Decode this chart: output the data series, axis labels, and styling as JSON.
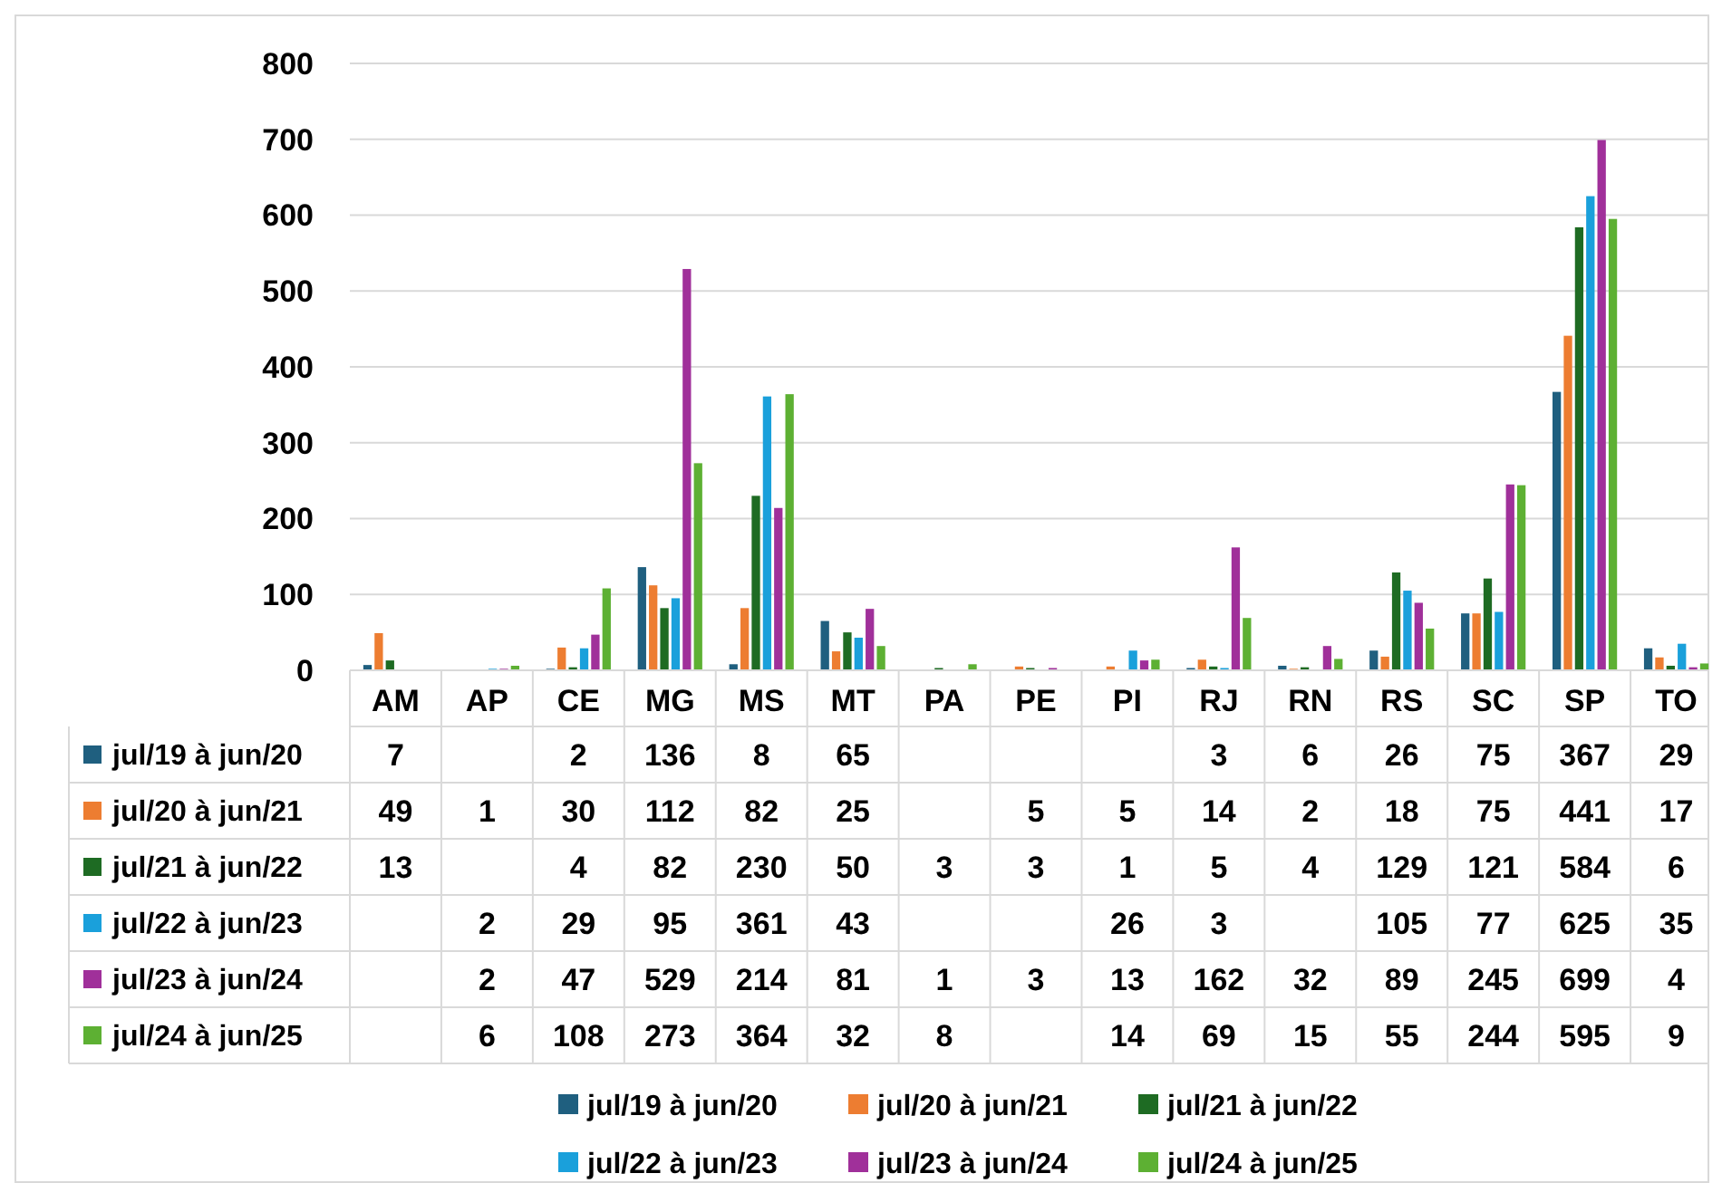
{
  "chart_data": {
    "type": "bar",
    "categories": [
      "AM",
      "AP",
      "CE",
      "MG",
      "MS",
      "MT",
      "PA",
      "PE",
      "PI",
      "RJ",
      "RN",
      "RS",
      "SC",
      "SP",
      "TO"
    ],
    "series": [
      {
        "name": "jul/19 à jun/20",
        "color": "#1f5f7f",
        "values": [
          7,
          null,
          2,
          136,
          8,
          65,
          null,
          null,
          null,
          3,
          6,
          26,
          75,
          367,
          29
        ]
      },
      {
        "name": "jul/20 à jun/21",
        "color": "#ed7d31",
        "values": [
          49,
          1,
          30,
          112,
          82,
          25,
          null,
          5,
          5,
          14,
          2,
          18,
          75,
          441,
          17
        ]
      },
      {
        "name": "jul/21 à jun/22",
        "color": "#1e6b23",
        "values": [
          13,
          null,
          4,
          82,
          230,
          50,
          3,
          3,
          1,
          5,
          4,
          129,
          121,
          584,
          6
        ]
      },
      {
        "name": "jul/22 à jun/23",
        "color": "#1aa0db",
        "values": [
          null,
          2,
          29,
          95,
          361,
          43,
          null,
          null,
          26,
          3,
          null,
          105,
          77,
          625,
          35
        ]
      },
      {
        "name": "jul/23 à jun/24",
        "color": "#a0309a",
        "values": [
          null,
          2,
          47,
          529,
          214,
          81,
          1,
          3,
          13,
          162,
          32,
          89,
          245,
          699,
          4
        ]
      },
      {
        "name": "jul/24 à jun/25",
        "color": "#5db033",
        "values": [
          null,
          6,
          108,
          273,
          364,
          32,
          8,
          null,
          14,
          69,
          15,
          55,
          244,
          595,
          9
        ]
      }
    ],
    "ylim": [
      0,
      800
    ],
    "yticks": [
      0,
      100,
      200,
      300,
      400,
      500,
      600,
      700,
      800
    ],
    "grid": "y",
    "data_labels": true,
    "legend": "bottom"
  }
}
